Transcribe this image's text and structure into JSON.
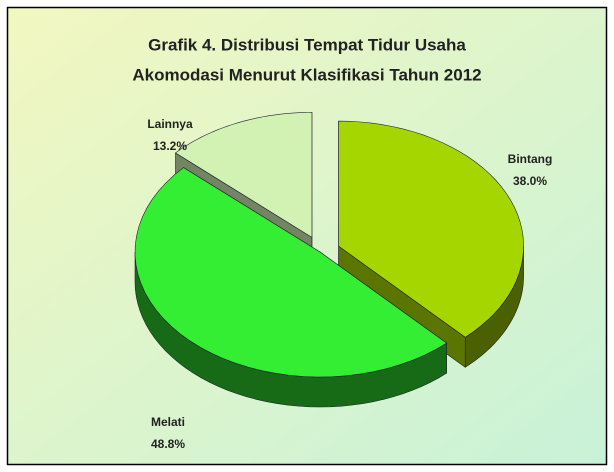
{
  "chart_data": {
    "type": "pie",
    "title": [
      "Grafik 4. Distribusi Tempat Tidur Usaha",
      "Akomodasi Menurut Klasifikasi Tahun 2012"
    ],
    "categories": [
      "Bintang",
      "Melati",
      "Lainnya"
    ],
    "values": [
      38.0,
      48.8,
      13.2
    ],
    "value_labels": [
      "38.0%",
      "48.8%",
      "13.2%"
    ],
    "colors": [
      "#a6d600",
      "#33ee33",
      "#d2f2b4"
    ],
    "exploded": [
      true,
      false,
      true
    ]
  }
}
